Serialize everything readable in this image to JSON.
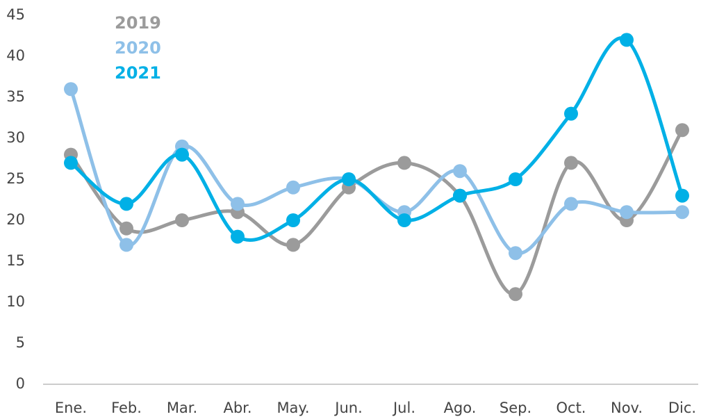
{
  "chart_data": {
    "type": "line",
    "categories": [
      "Ene.",
      "Feb.",
      "Mar.",
      "Abr.",
      "May.",
      "Jun.",
      "Jul.",
      "Ago.",
      "Sep.",
      "Oct.",
      "Nov.",
      "Dic."
    ],
    "series": [
      {
        "name": "2019",
        "color": "#9b9b9b",
        "values": [
          28,
          19,
          20,
          21,
          17,
          24,
          27,
          23,
          11,
          27,
          20,
          31
        ]
      },
      {
        "name": "2020",
        "color": "#8ec0e8",
        "values": [
          36,
          17,
          29,
          22,
          24,
          25,
          21,
          26,
          16,
          22,
          21,
          21
        ]
      },
      {
        "name": "2021",
        "color": "#00b0e6",
        "values": [
          27,
          22,
          28,
          18,
          20,
          25,
          20,
          23,
          25,
          33,
          42,
          23
        ]
      }
    ],
    "ylim": [
      0,
      45
    ],
    "yticks": [
      0,
      5,
      10,
      15,
      20,
      25,
      30,
      35,
      40,
      45
    ],
    "grid": false
  }
}
